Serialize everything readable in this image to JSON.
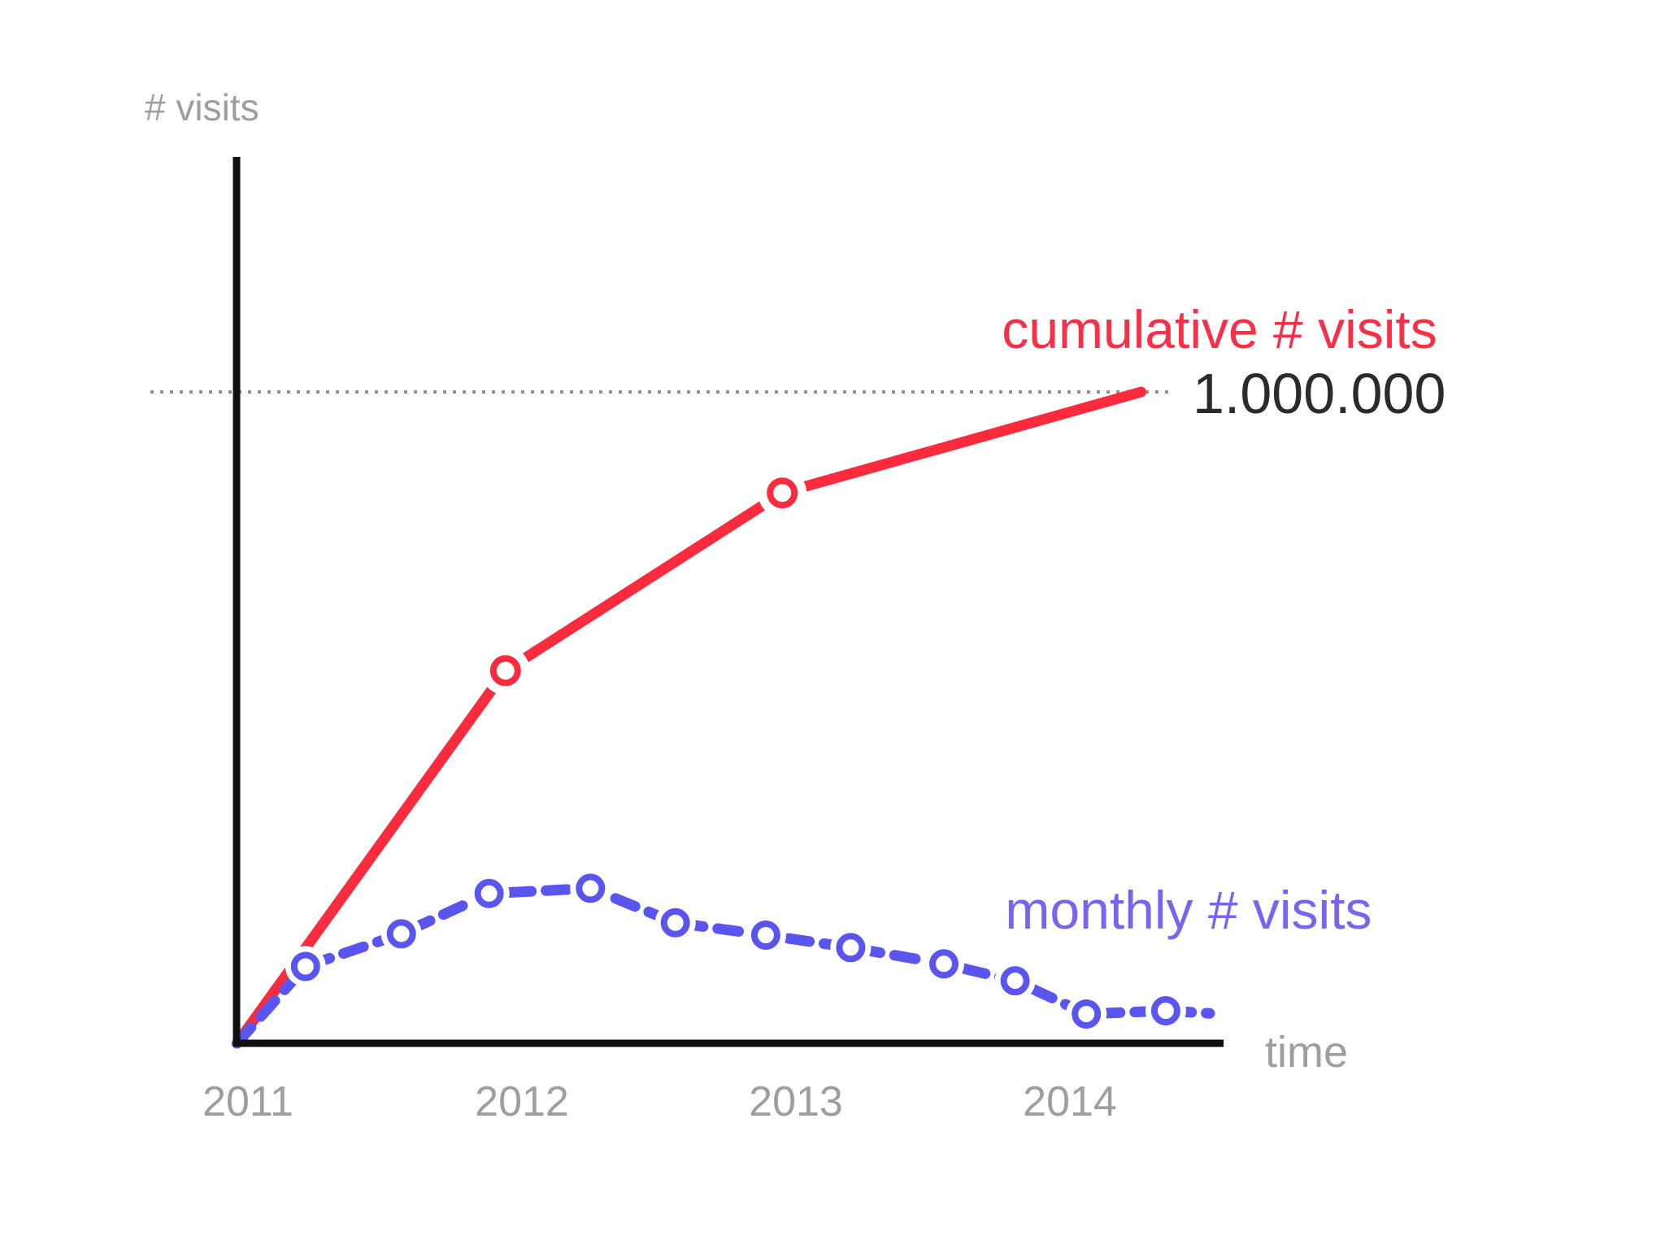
{
  "chart_data": {
    "type": "line",
    "title": "",
    "xlabel": "time",
    "ylabel": "# visits",
    "x_ticks": [
      "2011",
      "2012",
      "2013",
      "2014"
    ],
    "x_tick_years": [
      2011,
      2012,
      2013,
      2014
    ],
    "xlim": [
      2010.96,
      2014.62
    ],
    "ylim": [
      0,
      1370000
    ],
    "grid": false,
    "legend_position": "inline-annotations",
    "axis_color": "#101010",
    "tick_color": "#9e9e9e",
    "axis_label_color": "#9e9e9e",
    "reference_line": {
      "value": 1000000,
      "label": "1.000.000",
      "style": "dotted",
      "color": "#8f8f8f",
      "label_color": "#2b2b2b"
    },
    "series": [
      {
        "name": "cumulative # visits",
        "color": "#fa2b3d",
        "label_color": "#fb2e48",
        "style": "solid",
        "markers": "open-circle",
        "points": [
          {
            "x": 2010.96,
            "y": 0,
            "marker": false
          },
          {
            "x": 2011.94,
            "y": 572000,
            "marker": true
          },
          {
            "x": 2012.95,
            "y": 845000,
            "marker": true
          },
          {
            "x": 2014.26,
            "y": 1000000,
            "marker": false
          }
        ]
      },
      {
        "name": "monthly # visits",
        "color": "#5b55ef",
        "label_color": "#7a63f1",
        "style": "dashed",
        "markers": "open-circle",
        "points": [
          {
            "x": 2010.96,
            "y": 0,
            "marker": false
          },
          {
            "x": 2011.21,
            "y": 118000,
            "marker": true
          },
          {
            "x": 2011.56,
            "y": 168000,
            "marker": true
          },
          {
            "x": 2011.88,
            "y": 230000,
            "marker": true
          },
          {
            "x": 2012.25,
            "y": 238000,
            "marker": true
          },
          {
            "x": 2012.56,
            "y": 185000,
            "marker": true
          },
          {
            "x": 2012.89,
            "y": 166000,
            "marker": true
          },
          {
            "x": 2013.2,
            "y": 147000,
            "marker": true
          },
          {
            "x": 2013.54,
            "y": 122000,
            "marker": true
          },
          {
            "x": 2013.8,
            "y": 96000,
            "marker": true
          },
          {
            "x": 2014.06,
            "y": 45000,
            "marker": true
          },
          {
            "x": 2014.35,
            "y": 50000,
            "marker": true
          },
          {
            "x": 2014.51,
            "y": 46000,
            "marker": false
          }
        ]
      }
    ]
  }
}
